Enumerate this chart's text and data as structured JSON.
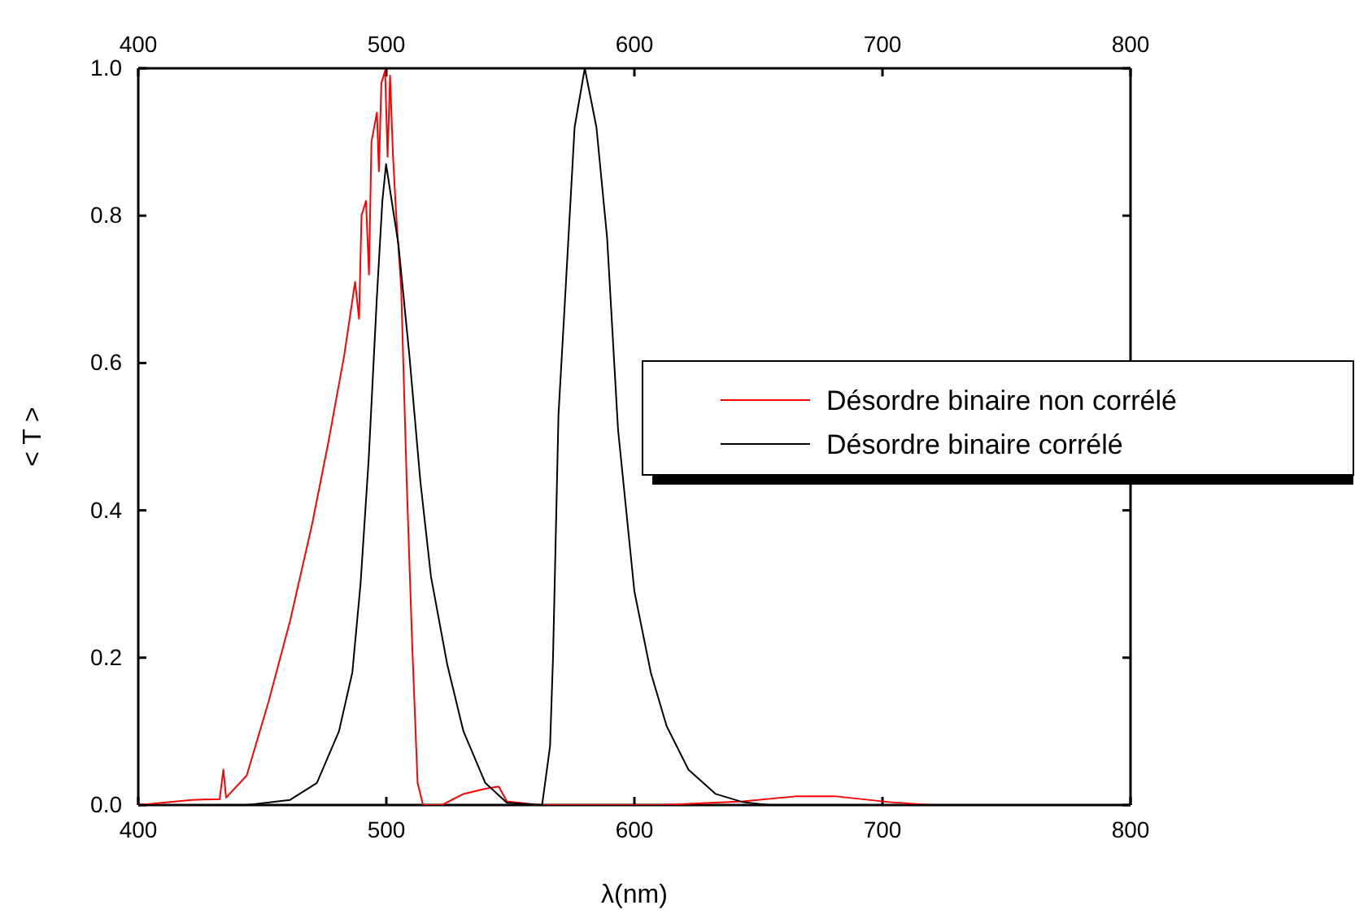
{
  "chart_data": {
    "type": "line",
    "xlabel": "λ(nm)",
    "ylabel": "< T >",
    "xlim": [
      400,
      800
    ],
    "xticks": [
      400,
      500,
      600,
      700,
      800
    ],
    "x2lim": [
      400,
      800
    ],
    "x2ticks": [
      400,
      500,
      600,
      700,
      800
    ],
    "ylim": [
      0,
      1
    ],
    "yticks": [
      {
        "value": 0,
        "label": "0.0"
      },
      {
        "value": 0.2,
        "label": "0.2"
      },
      {
        "value": 0.4,
        "label": "0.4"
      },
      {
        "value": 0.6,
        "label": "0.6"
      },
      {
        "value": 0.8,
        "label": "0.8"
      },
      {
        "value": 1,
        "label": "1.0"
      }
    ],
    "grid": false,
    "legend": "right",
    "marker": "none",
    "line_style": "solid",
    "series": [
      {
        "name": "Désordre binaire non corrélé",
        "color": "#ff0000",
        "x": [
          400,
          421.6,
          432.8,
          434.3,
          435.4,
          443.7,
          452.5,
          461.2,
          470,
          476.5,
          483,
          487.4,
          489,
          490,
          491.8,
          493,
          494,
          496.2,
          497,
          498,
          499.5,
          500.5,
          501.5,
          502.7,
          504,
          506,
          508.2,
          510.4,
          512.6,
          514.8,
          522.4,
          531,
          539.8,
          545.3,
          548.6,
          561.7,
          611,
          643.7,
          665.6,
          680.7,
          702.7,
          720,
          800
        ],
        "values": [
          0,
          0.007,
          0.008,
          0.048,
          0.01,
          0.04,
          0.14,
          0.25,
          0.38,
          0.49,
          0.61,
          0.71,
          0.66,
          0.8,
          0.82,
          0.72,
          0.9,
          0.94,
          0.86,
          0.98,
          0.997,
          0.88,
          0.99,
          0.88,
          0.8,
          0.7,
          0.44,
          0.22,
          0.03,
          0,
          0,
          0.015,
          0.022,
          0.025,
          0.005,
          0,
          0,
          0.005,
          0.012,
          0.012,
          0.004,
          0,
          0
        ]
      },
      {
        "name": "Désordre binaire corrélé",
        "color": "#000000",
        "x": [
          400,
          443.7,
          461.2,
          472,
          480.9,
          486.3,
          489.6,
          492.9,
          496.2,
          498.4,
          499.9,
          504.9,
          509.3,
          513.7,
          518,
          524.6,
          531.1,
          539.9,
          548.6,
          562.8,
          566,
          567.2,
          569.4,
          571.6,
          575.9,
          580,
          584.7,
          589,
          593.4,
          600,
          606.6,
          613,
          621.8,
          632.8,
          643.7,
          654.6,
          800
        ],
        "values": [
          0,
          0,
          0.007,
          0.03,
          0.1,
          0.18,
          0.3,
          0.47,
          0.69,
          0.82,
          0.87,
          0.76,
          0.61,
          0.44,
          0.31,
          0.19,
          0.1,
          0.03,
          0.003,
          0,
          0.08,
          0.2,
          0.53,
          0.66,
          0.92,
          1,
          0.92,
          0.77,
          0.51,
          0.29,
          0.18,
          0.107,
          0.048,
          0.015,
          0.004,
          0,
          0
        ]
      }
    ]
  }
}
